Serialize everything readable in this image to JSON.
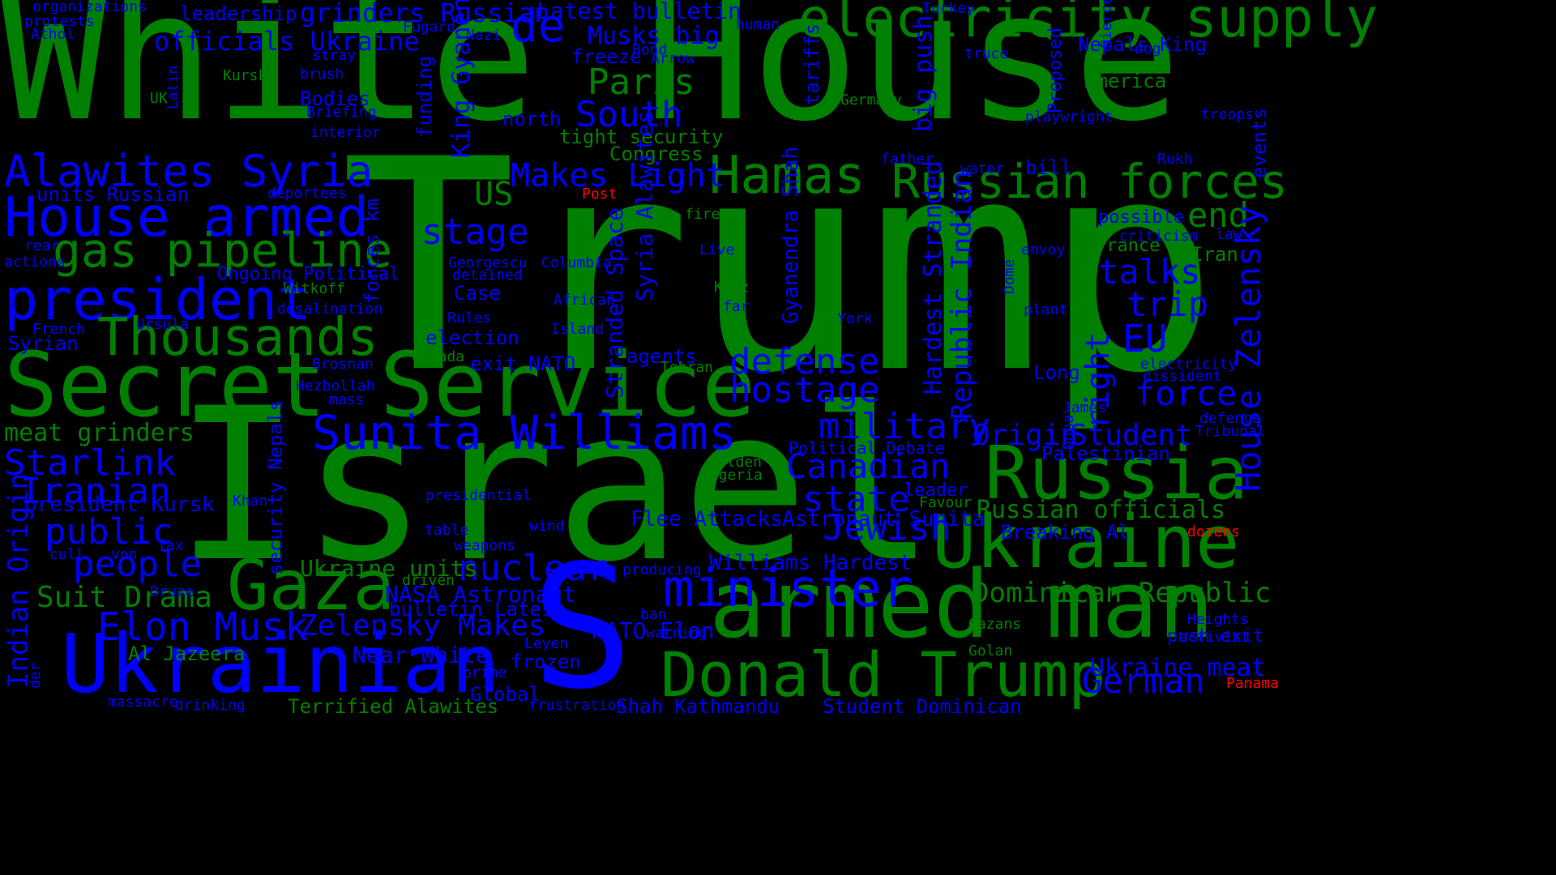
{
  "colors": {
    "background": "#000000",
    "green": "#008000",
    "blue": "#0000ff",
    "red": "#ff0000"
  },
  "words": [
    {
      "text": "White House",
      "color": "green"
    },
    {
      "text": "Trump",
      "color": "green"
    },
    {
      "text": "Israel",
      "color": "green"
    },
    {
      "text": "S",
      "color": "blue"
    },
    {
      "text": "electricity supply",
      "color": "green"
    },
    {
      "text": "Secret Service",
      "color": "green"
    },
    {
      "text": "armed man",
      "color": "green"
    },
    {
      "text": "Donald Trump",
      "color": "green"
    },
    {
      "text": "Ukrainian",
      "color": "blue"
    },
    {
      "text": "Gaza",
      "color": "green"
    },
    {
      "text": "Ukraine",
      "color": "green"
    },
    {
      "text": "Russia",
      "color": "green"
    },
    {
      "text": "House armed",
      "color": "blue"
    },
    {
      "text": "president",
      "color": "blue"
    },
    {
      "text": "Alawites Syria",
      "color": "blue"
    },
    {
      "text": "Thousands",
      "color": "green"
    },
    {
      "text": "Hamas",
      "color": "green"
    },
    {
      "text": "Russian forces",
      "color": "green"
    },
    {
      "text": "gas pipeline",
      "color": "green"
    },
    {
      "text": "Sunita Williams",
      "color": "blue"
    },
    {
      "text": "minister",
      "color": "blue"
    },
    {
      "text": "Elon Musk",
      "color": "blue"
    },
    {
      "text": "Paris",
      "color": "green"
    },
    {
      "text": "South",
      "color": "blue"
    },
    {
      "text": "de",
      "color": "blue"
    },
    {
      "text": "stage",
      "color": "blue"
    },
    {
      "text": "US",
      "color": "green"
    },
    {
      "text": "Makes Light",
      "color": "blue"
    },
    {
      "text": "military",
      "color": "blue"
    },
    {
      "text": "Canadian",
      "color": "blue"
    },
    {
      "text": "state",
      "color": "blue"
    },
    {
      "text": "Jewish",
      "color": "blue"
    },
    {
      "text": "defense",
      "color": "blue"
    },
    {
      "text": "hostage",
      "color": "blue"
    },
    {
      "text": "talks",
      "color": "blue"
    },
    {
      "text": "trip",
      "color": "blue"
    },
    {
      "text": "EU",
      "color": "blue"
    },
    {
      "text": "end",
      "color": "green"
    },
    {
      "text": "force",
      "color": "blue"
    },
    {
      "text": "Student",
      "color": "blue"
    },
    {
      "text": "Origin",
      "color": "blue"
    },
    {
      "text": "German",
      "color": "blue"
    },
    {
      "text": "nuclear",
      "color": "blue"
    },
    {
      "text": "Zelensky Makes",
      "color": "blue"
    },
    {
      "text": "Starlink",
      "color": "blue"
    },
    {
      "text": "Iranian",
      "color": "blue"
    },
    {
      "text": "public",
      "color": "blue"
    },
    {
      "text": "people",
      "color": "blue"
    },
    {
      "text": "Suit Drama",
      "color": "green"
    },
    {
      "text": "meat grinders",
      "color": "green"
    },
    {
      "text": "president Kursk",
      "color": "blue"
    },
    {
      "text": "Dominican Republic",
      "color": "green"
    },
    {
      "text": "Russian officials",
      "color": "green"
    },
    {
      "text": "Ukraine meat",
      "color": "blue"
    },
    {
      "text": "push exit",
      "color": "blue"
    },
    {
      "text": "Ukraine units",
      "color": "green"
    },
    {
      "text": "NASA Astronaut",
      "color": "blue"
    },
    {
      "text": "Near White",
      "color": "blue"
    },
    {
      "text": "frozen",
      "color": "blue"
    },
    {
      "text": "Flee Attacks",
      "color": "blue"
    },
    {
      "text": "Astronaut Sunita",
      "color": "blue"
    },
    {
      "text": "Williams Hardest",
      "color": "blue"
    },
    {
      "text": "NATO Elon",
      "color": "blue"
    },
    {
      "text": "bulletin Latest",
      "color": "blue"
    },
    {
      "text": "Al Jazeera",
      "color": "green"
    },
    {
      "text": "Terrified Alawites",
      "color": "green"
    },
    {
      "text": "Shah Kathmandu",
      "color": "blue"
    },
    {
      "text": "Student Dominican",
      "color": "blue"
    },
    {
      "text": "Global",
      "color": "blue"
    },
    {
      "text": "officials Ukraine",
      "color": "blue"
    },
    {
      "text": "grinders Russian",
      "color": "blue"
    },
    {
      "text": "Latest bulletin",
      "color": "blue"
    },
    {
      "text": "Musks big",
      "color": "blue"
    },
    {
      "text": "freeze",
      "color": "blue"
    },
    {
      "text": "leadership",
      "color": "blue"
    },
    {
      "text": "Bodies",
      "color": "blue"
    },
    {
      "text": "north",
      "color": "blue"
    },
    {
      "text": "tight security",
      "color": "green"
    },
    {
      "text": "Congress",
      "color": "green"
    },
    {
      "text": "units Russian",
      "color": "blue"
    },
    {
      "text": "Ongoing Political",
      "color": "blue"
    },
    {
      "text": "Syrian",
      "color": "blue"
    },
    {
      "text": "election",
      "color": "blue"
    },
    {
      "text": "exit NATO",
      "color": "blue"
    },
    {
      "text": "agents",
      "color": "blue"
    },
    {
      "text": "Case",
      "color": "blue"
    },
    {
      "text": "Nepals King",
      "color": "blue"
    },
    {
      "text": "America",
      "color": "green"
    },
    {
      "text": "France",
      "color": "green"
    },
    {
      "text": "Iran",
      "color": "green"
    },
    {
      "text": "possible",
      "color": "blue"
    },
    {
      "text": "Long",
      "color": "blue"
    },
    {
      "text": "Palestinian",
      "color": "blue"
    },
    {
      "text": "Breaking Al",
      "color": "blue"
    },
    {
      "text": "Political Debate",
      "color": "blue"
    },
    {
      "text": "leader",
      "color": "blue"
    },
    {
      "text": "Favour",
      "color": "green"
    },
    {
      "text": "organizations",
      "color": "blue"
    },
    {
      "text": "protests",
      "color": "blue"
    },
    {
      "text": "Athol",
      "color": "blue"
    },
    {
      "text": "Fugard",
      "color": "blue"
    },
    {
      "text": "Nazi",
      "color": "blue"
    },
    {
      "text": "Turkey",
      "color": "blue"
    },
    {
      "text": "human",
      "color": "blue"
    },
    {
      "text": "stray",
      "color": "blue"
    },
    {
      "text": "brush",
      "color": "blue"
    },
    {
      "text": "Kursk",
      "color": "green"
    },
    {
      "text": "UK",
      "color": "green"
    },
    {
      "text": "Briefing",
      "color": "blue"
    },
    {
      "text": "interior",
      "color": "blue"
    },
    {
      "text": "Bond",
      "color": "blue"
    },
    {
      "text": "Arrow",
      "color": "blue"
    },
    {
      "text": "truce",
      "color": "blue"
    },
    {
      "text": "dog",
      "color": "blue"
    },
    {
      "text": "Germany",
      "color": "green"
    },
    {
      "text": "playwright",
      "color": "blue"
    },
    {
      "text": "troops",
      "color": "blue"
    },
    {
      "text": "father",
      "color": "blue"
    },
    {
      "text": "water",
      "color": "blue"
    },
    {
      "text": "bill",
      "color": "blue"
    },
    {
      "text": "Rukh",
      "color": "blue"
    },
    {
      "text": "deportees",
      "color": "blue"
    },
    {
      "text": "Post",
      "color": "red"
    },
    {
      "text": "fire",
      "color": "green"
    },
    {
      "text": "criticism",
      "color": "blue"
    },
    {
      "text": "law",
      "color": "blue"
    },
    {
      "text": "rear",
      "color": "blue"
    },
    {
      "text": "actions",
      "color": "blue"
    },
    {
      "text": "Witkoff",
      "color": "green"
    },
    {
      "text": "desalination",
      "color": "blue"
    },
    {
      "text": "Georgescu",
      "color": "blue"
    },
    {
      "text": "detained",
      "color": "blue"
    },
    {
      "text": "Columbia",
      "color": "blue"
    },
    {
      "text": "Live",
      "color": "blue"
    },
    {
      "text": "envoy",
      "color": "blue"
    },
    {
      "text": "Katz",
      "color": "green"
    },
    {
      "text": "far",
      "color": "blue"
    },
    {
      "text": "African",
      "color": "blue"
    },
    {
      "text": "Rules",
      "color": "blue"
    },
    {
      "text": "Island",
      "color": "blue"
    },
    {
      "text": "plant",
      "color": "blue"
    },
    {
      "text": "York",
      "color": "blue"
    },
    {
      "text": "French",
      "color": "blue"
    },
    {
      "text": "Ursula",
      "color": "blue"
    },
    {
      "text": "Canada",
      "color": "green"
    },
    {
      "text": "Brosnan",
      "color": "blue"
    },
    {
      "text": "Tehran",
      "color": "green"
    },
    {
      "text": "Hezbollah",
      "color": "blue"
    },
    {
      "text": "mass",
      "color": "blue"
    },
    {
      "text": "electricity",
      "color": "blue"
    },
    {
      "text": "dissident",
      "color": "blue"
    },
    {
      "text": "James",
      "color": "blue"
    },
    {
      "text": "defence",
      "color": "blue"
    },
    {
      "text": "Tribunal",
      "color": "blue"
    },
    {
      "text": "Golden",
      "color": "green"
    },
    {
      "text": "Algeria",
      "color": "green"
    },
    {
      "text": "presidential",
      "color": "blue"
    },
    {
      "text": "Khan",
      "color": "blue"
    },
    {
      "text": "table",
      "color": "blue"
    },
    {
      "text": "wind",
      "color": "blue"
    },
    {
      "text": "weapons",
      "color": "blue"
    },
    {
      "text": "Tax",
      "color": "blue"
    },
    {
      "text": "cull",
      "color": "blue"
    },
    {
      "text": "von",
      "color": "blue"
    },
    {
      "text": "dozens",
      "color": "red"
    },
    {
      "text": "Panama",
      "color": "red"
    },
    {
      "text": "Heights",
      "color": "blue"
    },
    {
      "text": "activist",
      "color": "blue"
    },
    {
      "text": "Gazans",
      "color": "green"
    },
    {
      "text": "Golan",
      "color": "green"
    },
    {
      "text": "producing",
      "color": "blue"
    },
    {
      "text": "driven",
      "color": "green"
    },
    {
      "text": "ban",
      "color": "blue"
    },
    {
      "text": "warning",
      "color": "blue"
    },
    {
      "text": "Leyen",
      "color": "blue"
    },
    {
      "text": "prime",
      "color": "blue"
    },
    {
      "text": "Druze",
      "color": "blue"
    },
    {
      "text": "massacre",
      "color": "blue"
    },
    {
      "text": "drinking",
      "color": "blue"
    },
    {
      "text": "frustration",
      "color": "blue"
    },
    {
      "text": "Latin",
      "color": "blue",
      "vertical": true
    },
    {
      "text": "King Gyanendra",
      "color": "blue",
      "vertical": true
    },
    {
      "text": "funding",
      "color": "blue",
      "vertical": true
    },
    {
      "text": "tariffs",
      "color": "blue",
      "vertical": true
    },
    {
      "text": "big push",
      "color": "blue",
      "vertical": true
    },
    {
      "text": "Pierce",
      "color": "blue",
      "vertical": true
    },
    {
      "text": "Proposed",
      "color": "blue",
      "vertical": true
    },
    {
      "text": "events",
      "color": "blue",
      "vertical": true
    },
    {
      "text": "forces km",
      "color": "blue",
      "vertical": true
    },
    {
      "text": "Stranded Space",
      "color": "blue",
      "vertical": true
    },
    {
      "text": "Syria Alawites",
      "color": "blue",
      "vertical": true
    },
    {
      "text": "Gyanendra Shah",
      "color": "blue",
      "vertical": true
    },
    {
      "text": "Hardest Stranded",
      "color": "blue",
      "vertical": true
    },
    {
      "text": "Republic Indian",
      "color": "blue",
      "vertical": true
    },
    {
      "text": "Dome",
      "color": "blue",
      "vertical": true
    },
    {
      "text": "right",
      "color": "blue",
      "vertical": true
    },
    {
      "text": "Doha",
      "color": "blue",
      "vertical": true
    },
    {
      "text": "House Zelensky",
      "color": "blue",
      "vertical": true
    },
    {
      "text": "Indian Origin",
      "color": "blue",
      "vertical": true
    },
    {
      "text": "security Nepals",
      "color": "blue",
      "vertical": true
    },
    {
      "text": "der",
      "color": "blue",
      "vertical": true
    }
  ]
}
